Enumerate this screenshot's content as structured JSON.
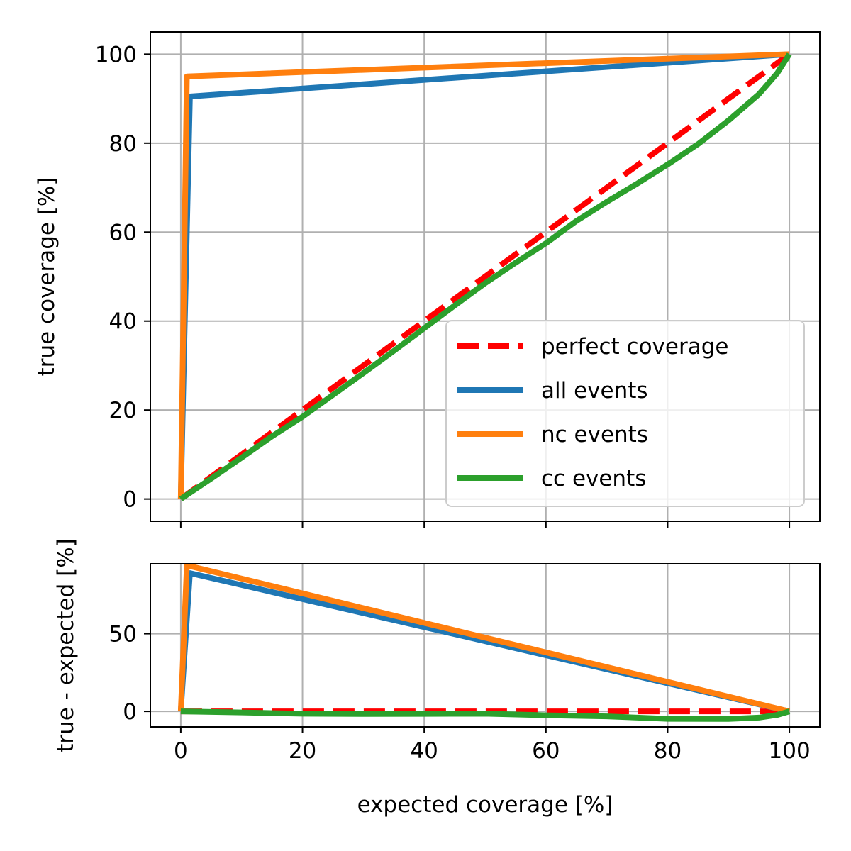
{
  "chart_data": [
    {
      "type": "line",
      "panel": "top",
      "title": "",
      "xlabel": "",
      "ylabel": "true coverage [%]",
      "xlim": [
        -5,
        105
      ],
      "ylim": [
        -5,
        105
      ],
      "xticks": [
        0,
        20,
        40,
        60,
        80,
        100
      ],
      "yticks": [
        0,
        20,
        40,
        60,
        80,
        100
      ],
      "xtick_labels_visible": false,
      "grid": true,
      "legend": {
        "placement": "lower right",
        "entries": [
          "perfect coverage",
          "all events",
          "nc events",
          "cc events"
        ]
      },
      "series": [
        {
          "name": "perfect coverage",
          "color": "#ff0000",
          "style": "dashed",
          "x": [
            0,
            100
          ],
          "y": [
            0,
            100
          ]
        },
        {
          "name": "all events",
          "color": "#1f77b4",
          "style": "solid",
          "x": [
            0,
            1.5,
            100
          ],
          "y": [
            0,
            90.5,
            100
          ]
        },
        {
          "name": "nc events",
          "color": "#ff7f0e",
          "style": "solid",
          "x": [
            0,
            1,
            100
          ],
          "y": [
            0,
            95,
            100
          ]
        },
        {
          "name": "cc events",
          "color": "#2ca02c",
          "style": "solid",
          "x": [
            0,
            5,
            10,
            15,
            20,
            25,
            30,
            35,
            40,
            45,
            50,
            55,
            60,
            65,
            70,
            75,
            80,
            85,
            90,
            95,
            98,
            100
          ],
          "y": [
            0,
            4.6,
            9.3,
            14.1,
            18.5,
            23.4,
            28.3,
            33.3,
            38.4,
            43.5,
            48.5,
            53.1,
            57.5,
            62.5,
            66.8,
            70.9,
            75.2,
            79.8,
            85.1,
            91.0,
            95.7,
            100
          ]
        }
      ]
    },
    {
      "type": "line",
      "panel": "bottom",
      "title": "",
      "xlabel": "expected coverage [%]",
      "ylabel": "true - expected [%]",
      "xlim": [
        -5,
        105
      ],
      "ylim": [
        -10,
        95
      ],
      "xticks": [
        0,
        20,
        40,
        60,
        80,
        100
      ],
      "yticks": [
        0,
        50
      ],
      "grid": true,
      "series": [
        {
          "name": "perfect coverage",
          "color": "#ff0000",
          "style": "dashed",
          "x": [
            0,
            100
          ],
          "y": [
            0,
            0
          ]
        },
        {
          "name": "all events",
          "color": "#1f77b4",
          "style": "solid",
          "x": [
            0,
            1.5,
            100
          ],
          "y": [
            0,
            89,
            0
          ]
        },
        {
          "name": "nc events",
          "color": "#ff7f0e",
          "style": "solid",
          "x": [
            0,
            1,
            100
          ],
          "y": [
            0,
            94,
            0
          ]
        },
        {
          "name": "cc events",
          "color": "#2ca02c",
          "style": "solid",
          "x": [
            0,
            10,
            20,
            30,
            40,
            50,
            60,
            70,
            80,
            90,
            95,
            98,
            100
          ],
          "y": [
            0,
            -0.7,
            -1.5,
            -1.7,
            -1.6,
            -1.5,
            -2.5,
            -3.2,
            -4.8,
            -4.9,
            -4.0,
            -2.3,
            0
          ]
        }
      ]
    }
  ]
}
